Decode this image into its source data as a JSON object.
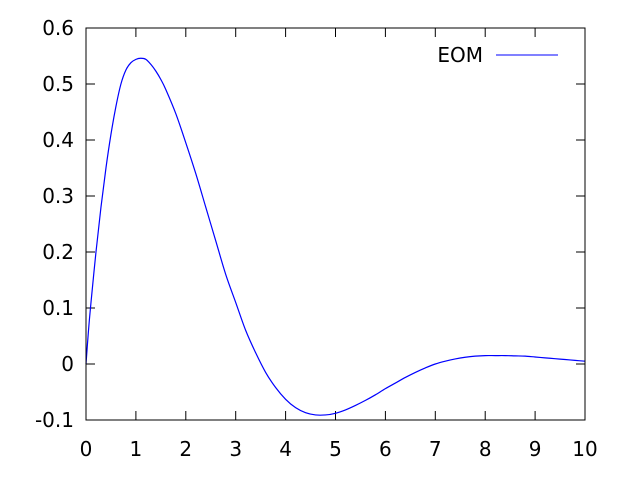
{
  "chart_data": {
    "type": "line",
    "title": "",
    "xlabel": "",
    "ylabel": "",
    "xlim": [
      0,
      10
    ],
    "ylim": [
      -0.1,
      0.6
    ],
    "xticks": [
      0,
      1,
      2,
      3,
      4,
      5,
      6,
      7,
      8,
      9,
      10
    ],
    "xtick_labels": [
      "0",
      "1",
      "2",
      "3",
      "4",
      "5",
      "6",
      "7",
      "8",
      "9",
      "10"
    ],
    "yticks": [
      -0.1,
      0,
      0.1,
      0.2,
      0.3,
      0.4,
      0.5,
      0.6
    ],
    "ytick_labels": [
      "-0.1",
      "0",
      "0.1",
      "0.2",
      "0.3",
      "0.4",
      "0.5",
      "0.6"
    ],
    "grid": false,
    "legend_position": "top-right",
    "series": [
      {
        "name": "EOM",
        "color": "#0000ff",
        "x": [
          0,
          0.05,
          0.1,
          0.2,
          0.3,
          0.4,
          0.5,
          0.6,
          0.7,
          0.8,
          0.9,
          1.0,
          1.1,
          1.2,
          1.3,
          1.4,
          1.5,
          1.6,
          1.8,
          2.0,
          2.2,
          2.4,
          2.6,
          2.8,
          3.0,
          3.2,
          3.4,
          3.6,
          3.8,
          4.0,
          4.2,
          4.4,
          4.6,
          4.8,
          5.0,
          5.2,
          5.4,
          5.6,
          5.8,
          6.0,
          6.2,
          6.4,
          6.6,
          6.8,
          7.0,
          7.2,
          7.4,
          7.6,
          7.8,
          8.0,
          8.2,
          8.4,
          8.6,
          8.8,
          9.0,
          9.2,
          9.4,
          9.6,
          9.8,
          10.0
        ],
        "y": [
          0.0,
          0.06,
          0.11,
          0.2,
          0.28,
          0.35,
          0.41,
          0.46,
          0.5,
          0.525,
          0.538,
          0.544,
          0.546,
          0.544,
          0.535,
          0.523,
          0.508,
          0.49,
          0.447,
          0.395,
          0.34,
          0.28,
          0.22,
          0.16,
          0.11,
          0.06,
          0.02,
          -0.015,
          -0.042,
          -0.063,
          -0.078,
          -0.087,
          -0.091,
          -0.091,
          -0.088,
          -0.082,
          -0.074,
          -0.065,
          -0.055,
          -0.044,
          -0.034,
          -0.024,
          -0.015,
          -0.007,
          0.0,
          0.005,
          0.009,
          0.012,
          0.014,
          0.015,
          0.015,
          0.015,
          0.0145,
          0.014,
          0.0125,
          0.011,
          0.0095,
          0.008,
          0.0065,
          0.005
        ]
      }
    ]
  }
}
